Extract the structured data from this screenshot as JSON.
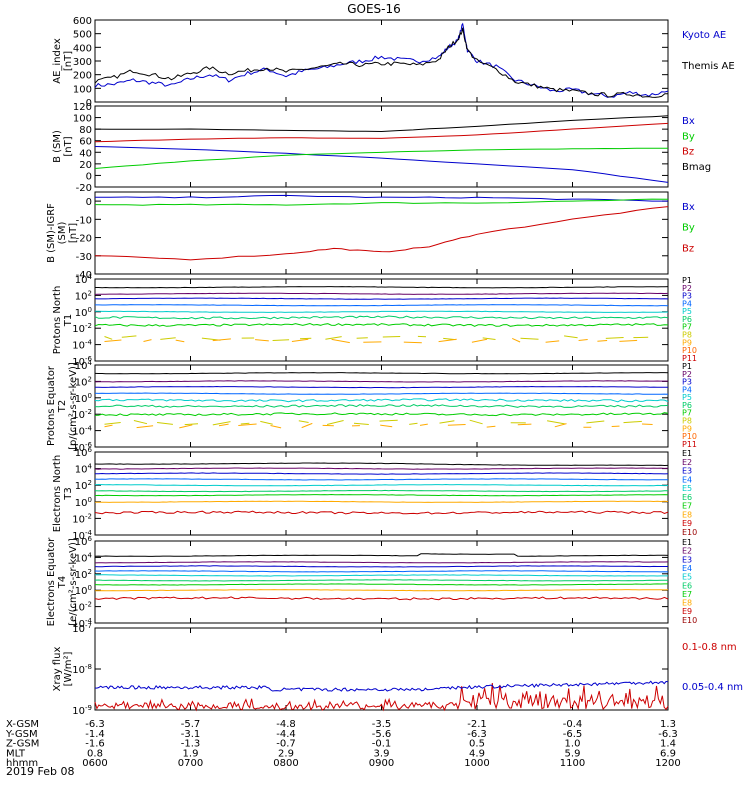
{
  "title": "GOES-16",
  "x_axis": {
    "ticks": [
      "0600",
      "0700",
      "0800",
      "0900",
      "1000",
      "1100",
      "1200"
    ],
    "start_hour": 6,
    "end_hour": 12
  },
  "ephemeris": {
    "rows": [
      {
        "label": "X-GSM",
        "values": [
          "-6.3",
          "-5.7",
          "-4.8",
          "-3.5",
          "-2.1",
          "-0.4",
          "1.3"
        ]
      },
      {
        "label": "Y-GSM",
        "values": [
          "-1.4",
          "-3.1",
          "-4.4",
          "-5.6",
          "-6.3",
          "-6.5",
          "-6.3"
        ]
      },
      {
        "label": "Z-GSM",
        "values": [
          "-1.6",
          "-1.3",
          "-0.7",
          "-0.1",
          "0.5",
          "1.0",
          "1.4"
        ]
      },
      {
        "label": "MLT",
        "values": [
          "0.8",
          "1.9",
          "2.9",
          "3.9",
          "4.9",
          "5.9",
          "6.9"
        ]
      },
      {
        "label": "hhmm",
        "values": [
          "0600",
          "0700",
          "0800",
          "0900",
          "1000",
          "1100",
          "1200"
        ]
      }
    ],
    "date": "2019 Feb 08"
  },
  "chart_data": [
    {
      "type": "line",
      "ylabel": "AE_index [nT]",
      "ylim": [
        0,
        600
      ],
      "yticks": [
        "0",
        "100",
        "200",
        "300",
        "400",
        "500",
        "600"
      ],
      "series": [
        {
          "name": "Kyoto AE",
          "color": "#0000cc",
          "x": [
            6.0,
            6.2,
            6.4,
            6.6,
            6.8,
            7.0,
            7.2,
            7.4,
            7.6,
            7.8,
            8.0,
            8.2,
            8.4,
            8.6,
            8.8,
            9.0,
            9.2,
            9.4,
            9.6,
            9.7,
            9.8,
            9.85,
            9.9,
            10.0,
            10.2,
            10.4,
            10.6,
            10.8,
            11.0,
            11.2,
            11.4,
            11.6,
            11.8,
            12.0
          ],
          "y": [
            120,
            130,
            160,
            140,
            120,
            170,
            200,
            160,
            210,
            240,
            190,
            230,
            250,
            280,
            300,
            330,
            310,
            300,
            330,
            400,
            450,
            570,
            380,
            300,
            260,
            160,
            120,
            80,
            90,
            60,
            40,
            70,
            50,
            80
          ]
        },
        {
          "name": "Themis AE",
          "color": "#000000",
          "x": [
            6.0,
            6.2,
            6.4,
            6.6,
            6.8,
            7.0,
            7.2,
            7.4,
            7.6,
            7.8,
            8.0,
            8.2,
            8.4,
            8.6,
            8.8,
            9.0,
            9.2,
            9.4,
            9.6,
            9.7,
            9.8,
            9.85,
            9.9,
            10.0,
            10.2,
            10.4,
            10.6,
            10.8,
            11.0,
            11.2,
            11.4,
            11.6,
            11.8,
            12.0
          ],
          "y": [
            150,
            180,
            230,
            200,
            170,
            210,
            250,
            210,
            230,
            250,
            220,
            240,
            260,
            280,
            270,
            280,
            280,
            270,
            310,
            400,
            460,
            530,
            380,
            300,
            240,
            150,
            120,
            90,
            80,
            60,
            50,
            60,
            40,
            60
          ]
        }
      ]
    },
    {
      "type": "line",
      "ylabel": "B (SM) [nT]",
      "ylim": [
        -20,
        120
      ],
      "yticks": [
        "-20",
        "0",
        "20",
        "40",
        "60",
        "80",
        "100",
        "120"
      ],
      "series": [
        {
          "name": "Bx",
          "color": "#0000cc",
          "x": [
            6,
            7,
            8,
            9,
            10,
            11,
            12
          ],
          "y": [
            50,
            45,
            38,
            30,
            20,
            10,
            -12
          ]
        },
        {
          "name": "By",
          "color": "#00cc00",
          "x": [
            6,
            7,
            8,
            9,
            10,
            11,
            12
          ],
          "y": [
            12,
            25,
            35,
            40,
            44,
            46,
            47
          ]
        },
        {
          "name": "Bz",
          "color": "#cc0000",
          "x": [
            6,
            7,
            8,
            9,
            10,
            11,
            12
          ],
          "y": [
            58,
            63,
            65,
            64,
            70,
            80,
            90
          ]
        },
        {
          "name": "Bmag",
          "color": "#000000",
          "x": [
            6,
            7,
            8,
            9,
            10,
            11,
            12
          ],
          "y": [
            80,
            80,
            78,
            76,
            85,
            95,
            103
          ]
        }
      ]
    },
    {
      "type": "line",
      "ylabel": "B (SM)-IGRF (SM) [nT]",
      "ylim": [
        -40,
        5
      ],
      "yticks": [
        "-40",
        "-30",
        "-20",
        "-10",
        "0"
      ],
      "series": [
        {
          "name": "Bx",
          "color": "#0000cc",
          "x": [
            6,
            7,
            8,
            9,
            10,
            11,
            12
          ],
          "y": [
            2,
            2,
            3,
            2,
            2,
            1,
            0
          ]
        },
        {
          "name": "By",
          "color": "#00cc00",
          "x": [
            6,
            7,
            8,
            9,
            10,
            11,
            12
          ],
          "y": [
            -2,
            -2,
            -2,
            -1,
            -1,
            0,
            1
          ]
        },
        {
          "name": "Bz",
          "color": "#cc0000",
          "x": [
            6,
            7,
            8,
            8.5,
            9,
            9.5,
            10,
            11,
            12
          ],
          "y": [
            -30,
            -32,
            -29,
            -26,
            -28,
            -25,
            -18,
            -10,
            -3
          ]
        }
      ]
    },
    {
      "type": "line",
      "ylabel": "Protons North T1",
      "log": true,
      "ylim_exp": [
        -6,
        4
      ],
      "yticks": [
        "10^-6",
        "10^-4",
        "10^-2",
        "10^0",
        "10^2",
        "10^4"
      ],
      "series": [
        {
          "name": "P1",
          "color": "#000000",
          "level": 3.0
        },
        {
          "name": "P2",
          "color": "#660066",
          "level": 2.2
        },
        {
          "name": "P3",
          "color": "#0000cc",
          "level": 1.6
        },
        {
          "name": "P4",
          "color": "#0066ff",
          "level": 0.8
        },
        {
          "name": "P5",
          "color": "#00cccc",
          "level": 0.0
        },
        {
          "name": "P6",
          "color": "#00cc66",
          "level": -0.7
        },
        {
          "name": "P7",
          "color": "#00cc00",
          "level": -1.6
        },
        {
          "name": "P8",
          "color": "#cccc00",
          "level": -3.2
        },
        {
          "name": "P9",
          "color": "#ffaa00",
          "level": -3.5
        },
        {
          "name": "P10",
          "color": "#ff6600",
          "level": null
        },
        {
          "name": "P11",
          "color": "#cc0000",
          "level": null
        }
      ]
    },
    {
      "type": "line",
      "ylabel": "Protons Equator T2 [p/(cm^2-s-sr-keV)]",
      "log": true,
      "ylim_exp": [
        -6,
        4
      ],
      "yticks": [
        "10^-6",
        "10^-4",
        "10^-2",
        "10^0",
        "10^2",
        "10^4"
      ],
      "series": [
        {
          "name": "P1",
          "color": "#000000",
          "level": 3.0
        },
        {
          "name": "P2",
          "color": "#660066",
          "level": 2.0
        },
        {
          "name": "P3",
          "color": "#0000cc",
          "level": 1.3
        },
        {
          "name": "P4",
          "color": "#0066ff",
          "level": 0.5
        },
        {
          "name": "P5",
          "color": "#00cccc",
          "level": -0.3
        },
        {
          "name": "P6",
          "color": "#00cc66",
          "level": -1.0
        },
        {
          "name": "P7",
          "color": "#00cc00",
          "level": -2.0
        },
        {
          "name": "P8",
          "color": "#cccc00",
          "level": -3.0
        },
        {
          "name": "P9",
          "color": "#ffaa00",
          "level": -3.4
        },
        {
          "name": "P10",
          "color": "#ff6600",
          "level": null
        },
        {
          "name": "P11",
          "color": "#cc0000",
          "level": null
        }
      ]
    },
    {
      "type": "line",
      "ylabel": "Electrons North T3",
      "log": true,
      "ylim_exp": [
        -4,
        6
      ],
      "yticks": [
        "10^-4",
        "10^-2",
        "10^0",
        "10^2",
        "10^4",
        "10^6"
      ],
      "series": [
        {
          "name": "E1",
          "color": "#000000",
          "level": 4.6
        },
        {
          "name": "E2",
          "color": "#660066",
          "level": 4.0
        },
        {
          "name": "E3",
          "color": "#0000cc",
          "level": 3.4
        },
        {
          "name": "E4",
          "color": "#0066ff",
          "level": 2.7
        },
        {
          "name": "E5",
          "color": "#00cccc",
          "level": 2.0
        },
        {
          "name": "E6",
          "color": "#00cc66",
          "level": 1.3
        },
        {
          "name": "E7",
          "color": "#00cc00",
          "level": 0.8
        },
        {
          "name": "E8",
          "color": "#ffaa00",
          "level": 0.0
        },
        {
          "name": "E9",
          "color": "#cc0000",
          "level": -1.3
        },
        {
          "name": "E10",
          "color": "#990000",
          "level": null
        }
      ]
    },
    {
      "type": "line",
      "ylabel": "Electrons Equator T4 [e/(cm^2-s-sr-keV)]",
      "log": true,
      "ylim_exp": [
        -4,
        6
      ],
      "yticks": [
        "10^-4",
        "10^-2",
        "10^0",
        "10^2",
        "10^4",
        "10^6"
      ],
      "series": [
        {
          "name": "E1",
          "color": "#000000",
          "level": 4.2
        },
        {
          "name": "E2",
          "color": "#660066",
          "level": 3.4
        },
        {
          "name": "E3",
          "color": "#0000cc",
          "level": 2.9
        },
        {
          "name": "E4",
          "color": "#0066ff",
          "level": 2.3
        },
        {
          "name": "E5",
          "color": "#00cccc",
          "level": 1.8
        },
        {
          "name": "E6",
          "color": "#00cc66",
          "level": 1.2
        },
        {
          "name": "E7",
          "color": "#00cc00",
          "level": 0.7
        },
        {
          "name": "E8",
          "color": "#ffaa00",
          "level": 0.0
        },
        {
          "name": "E9",
          "color": "#cc0000",
          "level": -1.0
        },
        {
          "name": "E10",
          "color": "#990000",
          "level": null
        }
      ]
    },
    {
      "type": "line",
      "ylabel": "Xray flux [W/m^2]",
      "log": true,
      "ylim_exp": [
        -9,
        -7
      ],
      "yticks": [
        "10^-9",
        "10^-8",
        "10^-7"
      ],
      "series": [
        {
          "name": "0.1-0.8 nm",
          "color": "#cc0000",
          "level": -8.9
        },
        {
          "name": "0.05-0.4 nm",
          "color": "#0000cc",
          "level": -8.45
        }
      ]
    }
  ]
}
